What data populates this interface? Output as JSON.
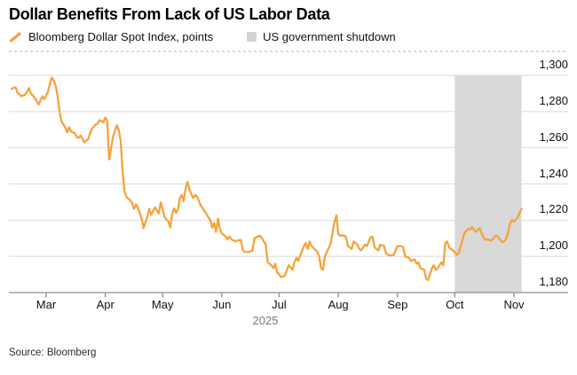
{
  "header": {
    "title": "Dollar Benefits From Lack of US Labor Data"
  },
  "legend": {
    "items": [
      {
        "label": "Bloomberg Dollar Spot Index, points",
        "marker": "line-slash-icon",
        "color": "#F6A23B"
      },
      {
        "label": "US government shutdown",
        "marker": "band-square-icon",
        "color": "#D3D3D3"
      }
    ]
  },
  "footer": {
    "source": "Source: Bloomberg"
  },
  "colors": {
    "line": "#F6A23B",
    "band": "#D9D9D9",
    "grid": "#DBDBDB",
    "axis": "#8F8F8F",
    "top_dash": "#B3B3B3"
  },
  "chart_data": {
    "type": "line",
    "title": "Dollar Benefits From Lack of US Labor Data",
    "ylabel": "points",
    "legend_position": "top",
    "grid": "horizontal",
    "y_axis": {
      "side": "right",
      "range": [
        1180,
        1300
      ],
      "ticks": [
        1300,
        1280,
        1260,
        1240,
        1220,
        1200,
        1180
      ],
      "tick_labels": [
        "1,300",
        "1,280",
        "1,260",
        "1,240",
        "1,220",
        "1,200",
        "1,180"
      ]
    },
    "x_axis": {
      "year_label": "2025",
      "months": [
        {
          "label": "Mar",
          "date": "2025-03-01"
        },
        {
          "label": "Apr",
          "date": "2025-04-01"
        },
        {
          "label": "May",
          "date": "2025-05-01"
        },
        {
          "label": "Jun",
          "date": "2025-06-01"
        },
        {
          "label": "Jul",
          "date": "2025-07-01"
        },
        {
          "label": "Aug",
          "date": "2025-08-01"
        },
        {
          "label": "Sep",
          "date": "2025-09-01"
        },
        {
          "label": "Oct",
          "date": "2025-10-01"
        },
        {
          "label": "Nov",
          "date": "2025-11-01"
        }
      ]
    },
    "band": {
      "label": "US government shutdown",
      "start": "2025-10-01",
      "end": "2025-11-05",
      "color": "#D9D9D9"
    },
    "series": [
      {
        "name": "Bloomberg Dollar Spot Index, points",
        "color": "#F6A23B",
        "points": [
          [
            "2025-02-11",
            1292.5
          ],
          [
            "2025-02-12",
            1293.2
          ],
          [
            "2025-02-13",
            1293.4
          ],
          [
            "2025-02-14",
            1290.5
          ],
          [
            "2025-02-16",
            1288.5
          ],
          [
            "2025-02-18",
            1289.3
          ],
          [
            "2025-02-19",
            1291.0
          ],
          [
            "2025-02-20",
            1293.0
          ],
          [
            "2025-02-21",
            1290.0
          ],
          [
            "2025-02-23",
            1287.6
          ],
          [
            "2025-02-25",
            1283.9
          ],
          [
            "2025-02-26",
            1286.0
          ],
          [
            "2025-02-27",
            1288.5
          ],
          [
            "2025-02-28",
            1286.8
          ],
          [
            "2025-03-02",
            1291.0
          ],
          [
            "2025-03-03",
            1295.5
          ],
          [
            "2025-03-04",
            1298.8
          ],
          [
            "2025-03-05",
            1297.0
          ],
          [
            "2025-03-06",
            1294.2
          ],
          [
            "2025-03-07",
            1288.5
          ],
          [
            "2025-03-08",
            1280.0
          ],
          [
            "2025-03-09",
            1274.6
          ],
          [
            "2025-03-10",
            1272.9
          ],
          [
            "2025-03-11",
            1271.3
          ],
          [
            "2025-03-12",
            1268.5
          ],
          [
            "2025-03-13",
            1271.3
          ],
          [
            "2025-03-14",
            1269.0
          ],
          [
            "2025-03-16",
            1268.0
          ],
          [
            "2025-03-17",
            1266.0
          ],
          [
            "2025-03-18",
            1265.5
          ],
          [
            "2025-03-19",
            1266.8
          ],
          [
            "2025-03-21",
            1263.0
          ],
          [
            "2025-03-23",
            1264.7
          ],
          [
            "2025-03-24",
            1268.0
          ],
          [
            "2025-03-25",
            1270.4
          ],
          [
            "2025-03-27",
            1272.9
          ],
          [
            "2025-03-28",
            1273.4
          ],
          [
            "2025-03-29",
            1275.3
          ],
          [
            "2025-03-31",
            1274.1
          ],
          [
            "2025-04-01",
            1276.7
          ],
          [
            "2025-04-02",
            1275.0
          ],
          [
            "2025-04-03",
            1253.5
          ],
          [
            "2025-04-05",
            1266.0
          ],
          [
            "2025-04-07",
            1272.4
          ],
          [
            "2025-04-08",
            1270.0
          ],
          [
            "2025-04-09",
            1264.0
          ],
          [
            "2025-04-10",
            1248.0
          ],
          [
            "2025-04-11",
            1236.0
          ],
          [
            "2025-04-12",
            1232.8
          ],
          [
            "2025-04-14",
            1231.1
          ],
          [
            "2025-04-15",
            1229.5
          ],
          [
            "2025-04-16",
            1226.2
          ],
          [
            "2025-04-17",
            1228.7
          ],
          [
            "2025-04-18",
            1227.0
          ],
          [
            "2025-04-20",
            1221.0
          ],
          [
            "2025-04-21",
            1215.6
          ],
          [
            "2025-04-23",
            1222.0
          ],
          [
            "2025-04-24",
            1226.2
          ],
          [
            "2025-04-25",
            1222.9
          ],
          [
            "2025-04-27",
            1227.0
          ],
          [
            "2025-04-29",
            1223.7
          ],
          [
            "2025-04-30",
            1229.8
          ],
          [
            "2025-05-02",
            1221.6
          ],
          [
            "2025-05-04",
            1219.2
          ],
          [
            "2025-05-05",
            1215.9
          ],
          [
            "2025-05-06",
            1223.3
          ],
          [
            "2025-05-07",
            1226.5
          ],
          [
            "2025-05-08",
            1224.1
          ],
          [
            "2025-05-09",
            1225.7
          ],
          [
            "2025-05-10",
            1232.3
          ],
          [
            "2025-05-11",
            1233.9
          ],
          [
            "2025-05-12",
            1230.6
          ],
          [
            "2025-05-13",
            1237.2
          ],
          [
            "2025-05-14",
            1241.2
          ],
          [
            "2025-05-15",
            1237.2
          ],
          [
            "2025-05-16",
            1234.4
          ],
          [
            "2025-05-17",
            1232.3
          ],
          [
            "2025-05-18",
            1233.9
          ],
          [
            "2025-05-19",
            1233.1
          ],
          [
            "2025-05-20",
            1230.6
          ],
          [
            "2025-05-21",
            1228.1
          ],
          [
            "2025-05-22",
            1226.5
          ],
          [
            "2025-05-23",
            1224.9
          ],
          [
            "2025-05-25",
            1221.6
          ],
          [
            "2025-05-26",
            1220.0
          ],
          [
            "2025-05-27",
            1215.9
          ],
          [
            "2025-05-28",
            1218.4
          ],
          [
            "2025-05-29",
            1213.5
          ],
          [
            "2025-05-30",
            1220.8
          ],
          [
            "2025-05-31",
            1215.1
          ],
          [
            "2025-06-01",
            1212.7
          ],
          [
            "2025-06-03",
            1211.0
          ],
          [
            "2025-06-04",
            1209.4
          ],
          [
            "2025-06-05",
            1211.0
          ],
          [
            "2025-06-06",
            1209.4
          ],
          [
            "2025-06-08",
            1208.3
          ],
          [
            "2025-06-10",
            1208.9
          ],
          [
            "2025-06-11",
            1209.0
          ],
          [
            "2025-06-12",
            1203.3
          ],
          [
            "2025-06-13",
            1202.5
          ],
          [
            "2025-06-15",
            1202.5
          ],
          [
            "2025-06-17",
            1203.0
          ],
          [
            "2025-06-18",
            1209.8
          ],
          [
            "2025-06-19",
            1210.5
          ],
          [
            "2025-06-21",
            1211.5
          ],
          [
            "2025-06-22",
            1210.0
          ],
          [
            "2025-06-24",
            1206.5
          ],
          [
            "2025-06-25",
            1196.7
          ],
          [
            "2025-06-27",
            1195.1
          ],
          [
            "2025-06-28",
            1193.4
          ],
          [
            "2025-06-29",
            1195.9
          ],
          [
            "2025-06-30",
            1191.0
          ],
          [
            "2025-07-01",
            1190.2
          ],
          [
            "2025-07-02",
            1188.5
          ],
          [
            "2025-07-04",
            1189.3
          ],
          [
            "2025-07-06",
            1195.1
          ],
          [
            "2025-07-08",
            1192.6
          ],
          [
            "2025-07-09",
            1196.7
          ],
          [
            "2025-07-10",
            1199.2
          ],
          [
            "2025-07-11",
            1197.5
          ],
          [
            "2025-07-14",
            1205.7
          ],
          [
            "2025-07-15",
            1207.4
          ],
          [
            "2025-07-16",
            1204.1
          ],
          [
            "2025-07-17",
            1208.2
          ],
          [
            "2025-07-18",
            1205.7
          ],
          [
            "2025-07-21",
            1202.5
          ],
          [
            "2025-07-22",
            1200.0
          ],
          [
            "2025-07-23",
            1193.4
          ],
          [
            "2025-07-24",
            1192.6
          ],
          [
            "2025-07-25",
            1200.0
          ],
          [
            "2025-07-28",
            1207.0
          ],
          [
            "2025-07-29",
            1213.1
          ],
          [
            "2025-07-30",
            1218.9
          ],
          [
            "2025-07-31",
            1222.6
          ],
          [
            "2025-08-01",
            1212.3
          ],
          [
            "2025-08-02",
            1211.5
          ],
          [
            "2025-08-04",
            1211.5
          ],
          [
            "2025-08-05",
            1210.7
          ],
          [
            "2025-08-06",
            1205.7
          ],
          [
            "2025-08-08",
            1204.1
          ],
          [
            "2025-08-09",
            1208.2
          ],
          [
            "2025-08-11",
            1206.5
          ],
          [
            "2025-08-12",
            1204.1
          ],
          [
            "2025-08-13",
            1203.3
          ],
          [
            "2025-08-15",
            1206.5
          ],
          [
            "2025-08-16",
            1205.7
          ],
          [
            "2025-08-18",
            1210.7
          ],
          [
            "2025-08-19",
            1210.7
          ],
          [
            "2025-08-20",
            1204.9
          ],
          [
            "2025-08-22",
            1203.3
          ],
          [
            "2025-08-23",
            1206.5
          ],
          [
            "2025-08-25",
            1205.7
          ],
          [
            "2025-08-26",
            1201.6
          ],
          [
            "2025-08-27",
            1200.8
          ],
          [
            "2025-08-29",
            1200.4
          ],
          [
            "2025-08-30",
            1200.8
          ],
          [
            "2025-09-01",
            1205.7
          ],
          [
            "2025-09-03",
            1205.7
          ],
          [
            "2025-09-04",
            1204.9
          ],
          [
            "2025-09-05",
            1200.0
          ],
          [
            "2025-09-07",
            1199.2
          ],
          [
            "2025-09-08",
            1197.5
          ],
          [
            "2025-09-10",
            1198.3
          ],
          [
            "2025-09-11",
            1195.9
          ],
          [
            "2025-09-12",
            1196.7
          ],
          [
            "2025-09-13",
            1193.4
          ],
          [
            "2025-09-15",
            1192.6
          ],
          [
            "2025-09-16",
            1187.7
          ],
          [
            "2025-09-17",
            1186.9
          ],
          [
            "2025-09-19",
            1193.4
          ],
          [
            "2025-09-20",
            1195.1
          ],
          [
            "2025-09-21",
            1192.6
          ],
          [
            "2025-09-22",
            1193.4
          ],
          [
            "2025-09-24",
            1196.7
          ],
          [
            "2025-09-25",
            1195.1
          ],
          [
            "2025-09-26",
            1207.4
          ],
          [
            "2025-09-27",
            1208.2
          ],
          [
            "2025-09-28",
            1204.9
          ],
          [
            "2025-09-30",
            1203.3
          ],
          [
            "2025-10-01",
            1202.3
          ],
          [
            "2025-10-02",
            1200.7
          ],
          [
            "2025-10-03",
            1201.7
          ],
          [
            "2025-10-04",
            1205.5
          ],
          [
            "2025-10-05",
            1208.7
          ],
          [
            "2025-10-06",
            1212.8
          ],
          [
            "2025-10-07",
            1214.0
          ],
          [
            "2025-10-08",
            1215.3
          ],
          [
            "2025-10-09",
            1214.8
          ],
          [
            "2025-10-10",
            1216.1
          ],
          [
            "2025-10-11",
            1214.9
          ],
          [
            "2025-10-12",
            1213.6
          ],
          [
            "2025-10-13",
            1214.4
          ],
          [
            "2025-10-14",
            1215.6
          ],
          [
            "2025-10-15",
            1213.0
          ],
          [
            "2025-10-16",
            1210.5
          ],
          [
            "2025-10-17",
            1209.1
          ],
          [
            "2025-10-18",
            1209.5
          ],
          [
            "2025-10-20",
            1208.7
          ],
          [
            "2025-10-21",
            1209.5
          ],
          [
            "2025-10-22",
            1211.2
          ],
          [
            "2025-10-23",
            1211.5
          ],
          [
            "2025-10-24",
            1210.4
          ],
          [
            "2025-10-25",
            1208.7
          ],
          [
            "2025-10-26",
            1207.9
          ],
          [
            "2025-10-27",
            1208.4
          ],
          [
            "2025-10-28",
            1210.0
          ],
          [
            "2025-10-29",
            1213.3
          ],
          [
            "2025-10-30",
            1218.4
          ],
          [
            "2025-10-31",
            1220.0
          ],
          [
            "2025-11-01",
            1219.2
          ],
          [
            "2025-11-02",
            1220.5
          ],
          [
            "2025-11-03",
            1221.6
          ],
          [
            "2025-11-04",
            1224.1
          ],
          [
            "2025-11-05",
            1226.3
          ]
        ]
      }
    ]
  }
}
